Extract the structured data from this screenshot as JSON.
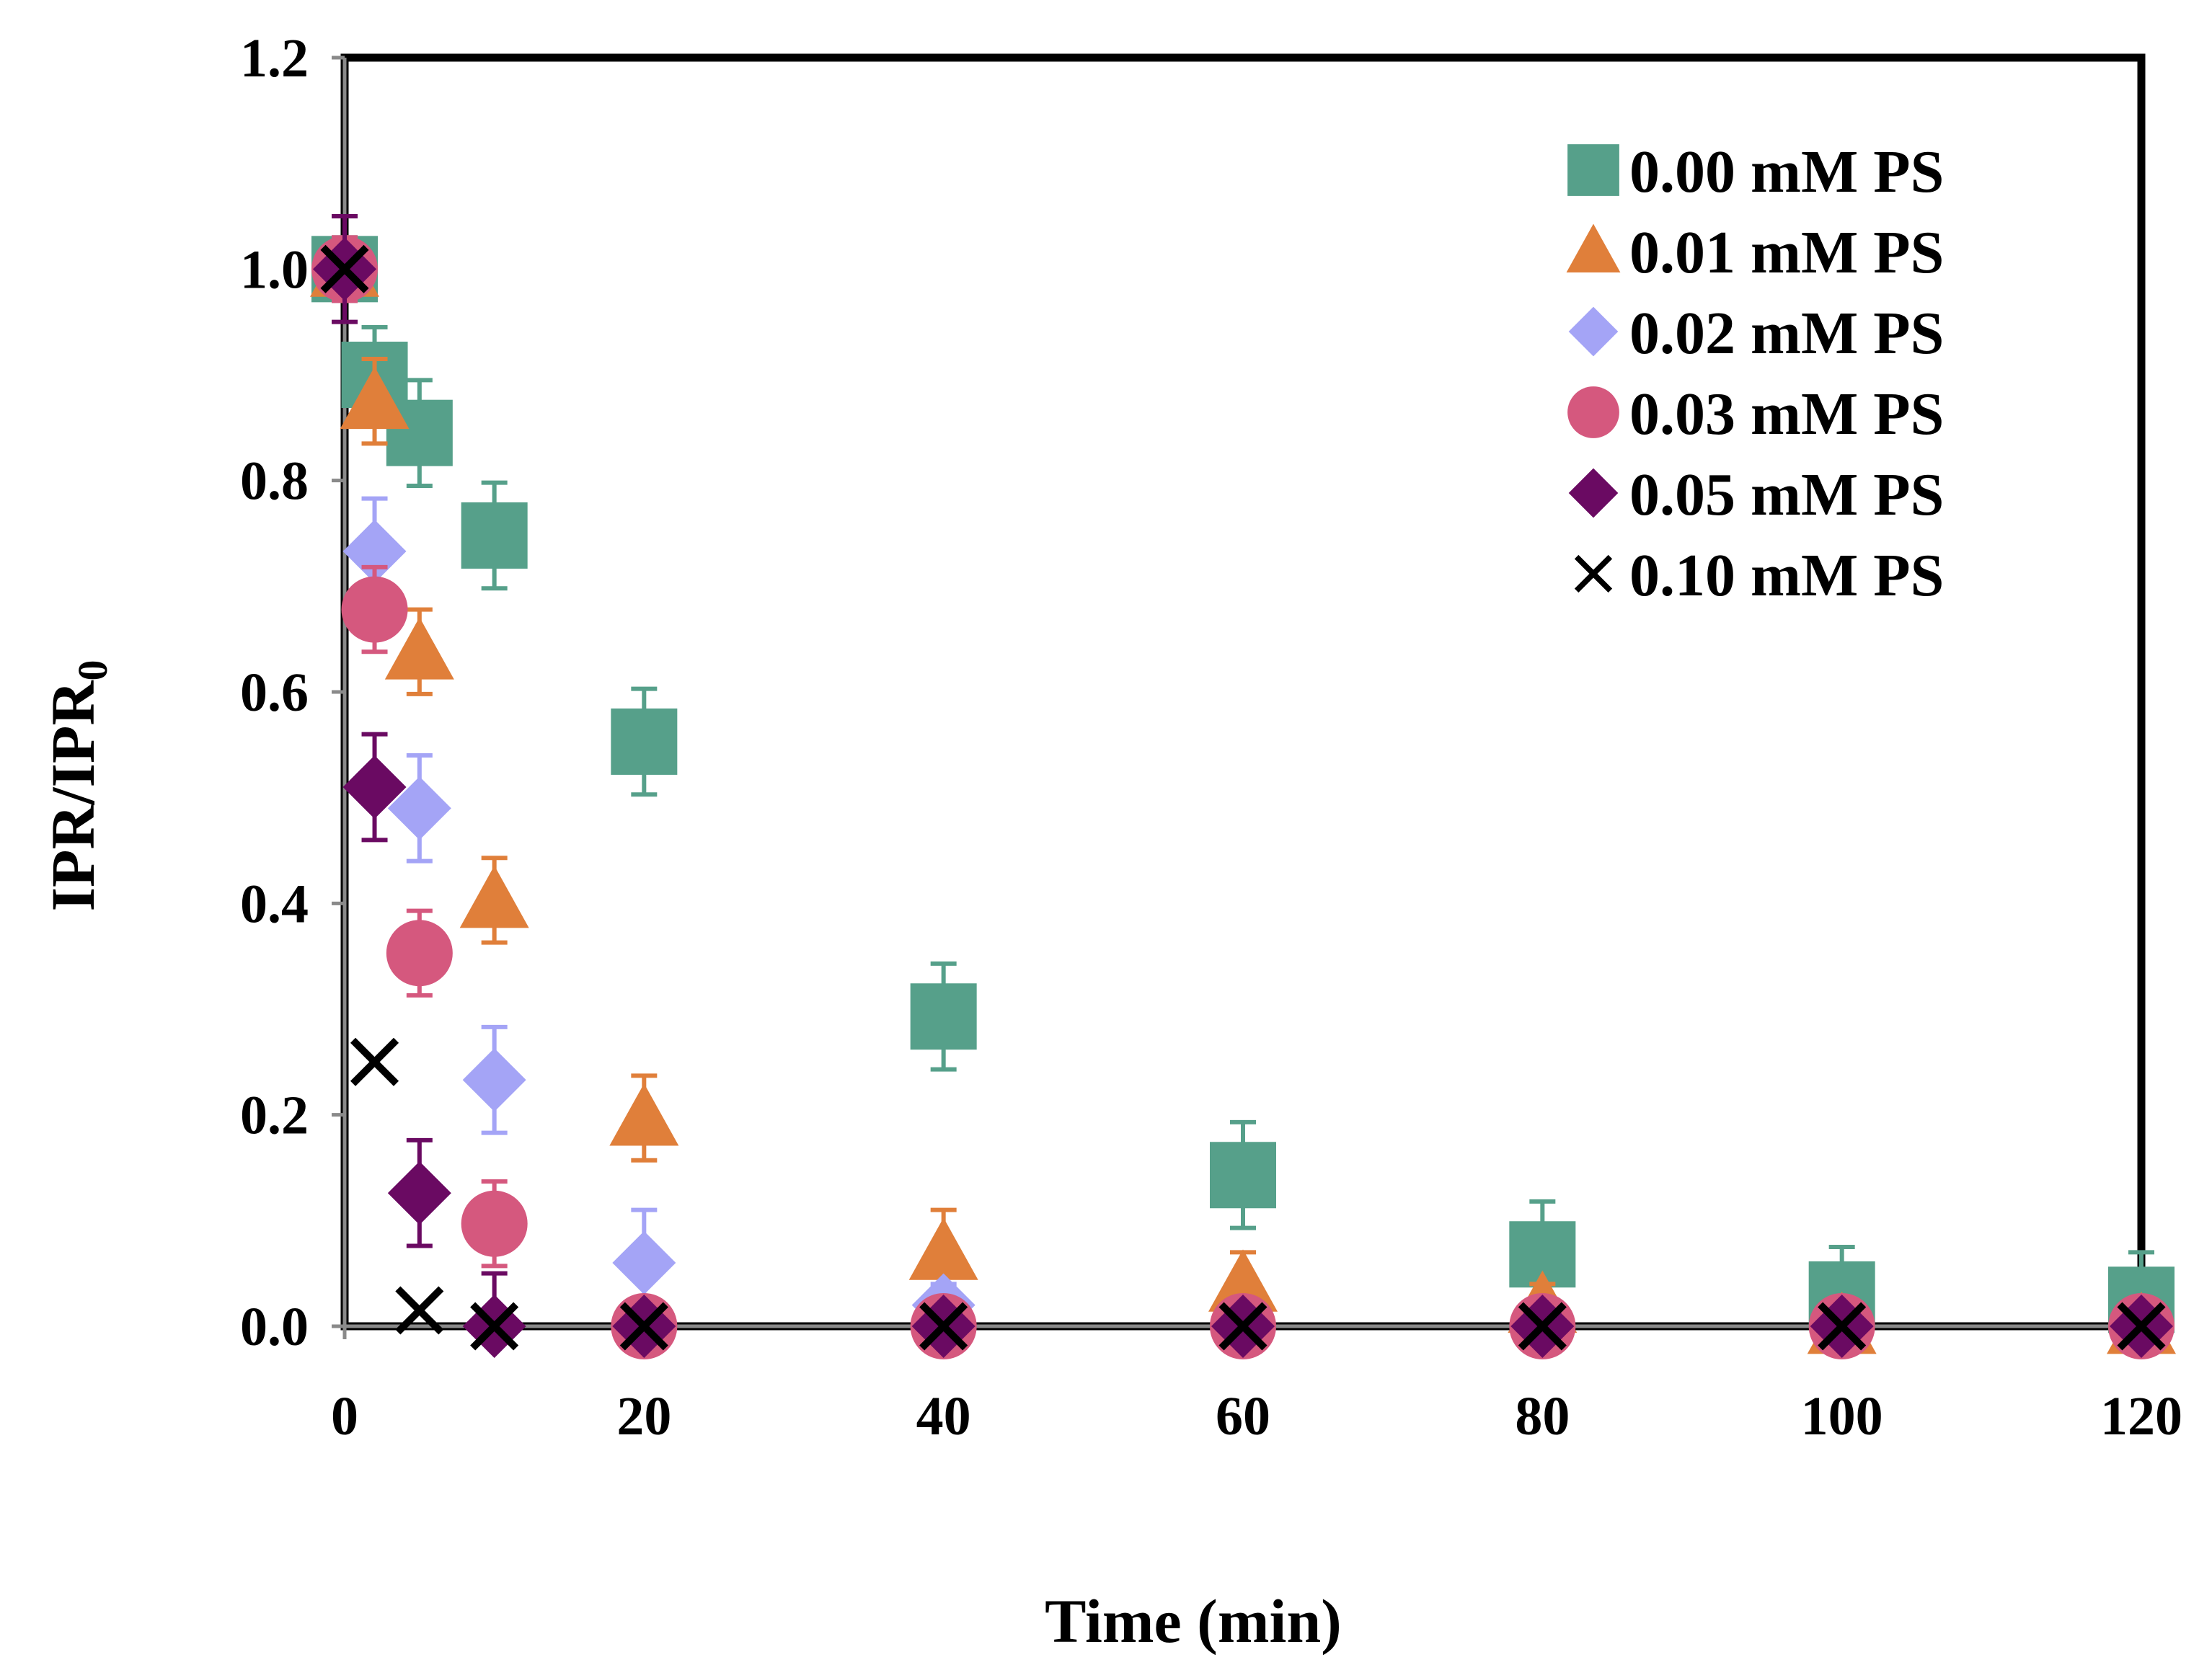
{
  "chart_data": {
    "type": "scatter",
    "xlabel": "Time (min)",
    "ylabel": {
      "main": "IPR/IPR",
      "subscript": "0"
    },
    "xlim": [
      0,
      120
    ],
    "ylim": [
      0,
      1.2
    ],
    "x_ticks": [
      0,
      20,
      40,
      60,
      80,
      100,
      120
    ],
    "y_ticks": [
      0,
      0.2,
      0.4,
      0.6,
      0.8,
      1.0,
      1.2
    ],
    "x_tick_labels": [
      "0",
      "20",
      "40",
      "60",
      "80",
      "100",
      "120"
    ],
    "y_tick_labels": [
      "0.0",
      "0.2",
      "0.4",
      "0.6",
      "0.8",
      "1.0",
      "1.2"
    ],
    "grid": false,
    "legend_position": "top-right",
    "series": [
      {
        "name": "0.00 mM PS",
        "marker": "square",
        "color": "#56a08a",
        "x": [
          0,
          2,
          5,
          10,
          20,
          40,
          60,
          80,
          100,
          120
        ],
        "y": [
          1.0,
          0.9,
          0.845,
          0.748,
          0.553,
          0.293,
          0.143,
          0.068,
          0.03,
          0.025
        ],
        "err": [
          0.03,
          0.045,
          0.05,
          0.05,
          0.05,
          0.05,
          0.05,
          0.05,
          0.045,
          0.045
        ]
      },
      {
        "name": "0.01 mM PS",
        "marker": "triangle",
        "color": "#e07f3a",
        "x": [
          0,
          2,
          5,
          10,
          20,
          40,
          60,
          80,
          100,
          120
        ],
        "y": [
          1.0,
          0.875,
          0.638,
          0.403,
          0.197,
          0.07,
          0.04,
          0.02,
          0.0,
          0.0
        ],
        "err": [
          0.03,
          0.04,
          0.04,
          0.04,
          0.04,
          0.04,
          0.03,
          0.02,
          0.01,
          0.01
        ]
      },
      {
        "name": "0.02 mM PS",
        "marker": "diamond",
        "color": "#a4a4f6",
        "x": [
          0,
          2,
          5,
          10,
          20,
          40,
          60,
          80,
          100,
          120
        ],
        "y": [
          1.0,
          0.733,
          0.49,
          0.233,
          0.06,
          0.02,
          0.0,
          0.0,
          0.0,
          0.0
        ],
        "err": [
          0.03,
          0.05,
          0.05,
          0.05,
          0.05,
          0.02,
          0.01,
          0.01,
          0.01,
          0.01
        ]
      },
      {
        "name": "0.03 mM PS",
        "marker": "circle",
        "color": "#d5587e",
        "x": [
          0,
          2,
          5,
          10,
          20,
          40,
          60,
          80,
          100,
          120
        ],
        "y": [
          1.0,
          0.678,
          0.353,
          0.097,
          0.0,
          0.0,
          0.0,
          0.0,
          0.0,
          0.0
        ],
        "err": [
          0.03,
          0.04,
          0.04,
          0.04,
          0.01,
          0.01,
          0.01,
          0.01,
          0.01,
          0.01
        ]
      },
      {
        "name": "0.05 mM PS",
        "marker": "diamond",
        "color": "#6a0a62",
        "x": [
          0,
          2,
          5,
          10,
          20,
          40,
          60,
          80,
          100,
          120
        ],
        "y": [
          1.0,
          0.51,
          0.126,
          0.0,
          0.0,
          0.0,
          0.0,
          0.0,
          0.0,
          0.0
        ],
        "err": [
          0.05,
          0.05,
          0.05,
          0.05,
          0.01,
          0.01,
          0.01,
          0.01,
          0.01,
          0.01
        ]
      },
      {
        "name": "0.10 mM PS",
        "marker": "x",
        "color": "#000000",
        "x": [
          0,
          2,
          5,
          10,
          20,
          40,
          60,
          80,
          100,
          120
        ],
        "y": [
          1.0,
          0.25,
          0.015,
          0.0,
          0.0,
          0.0,
          0.0,
          0.0,
          0.0,
          0.0
        ],
        "err": [
          0,
          0,
          0,
          0,
          0,
          0,
          0,
          0,
          0,
          0
        ]
      }
    ]
  }
}
